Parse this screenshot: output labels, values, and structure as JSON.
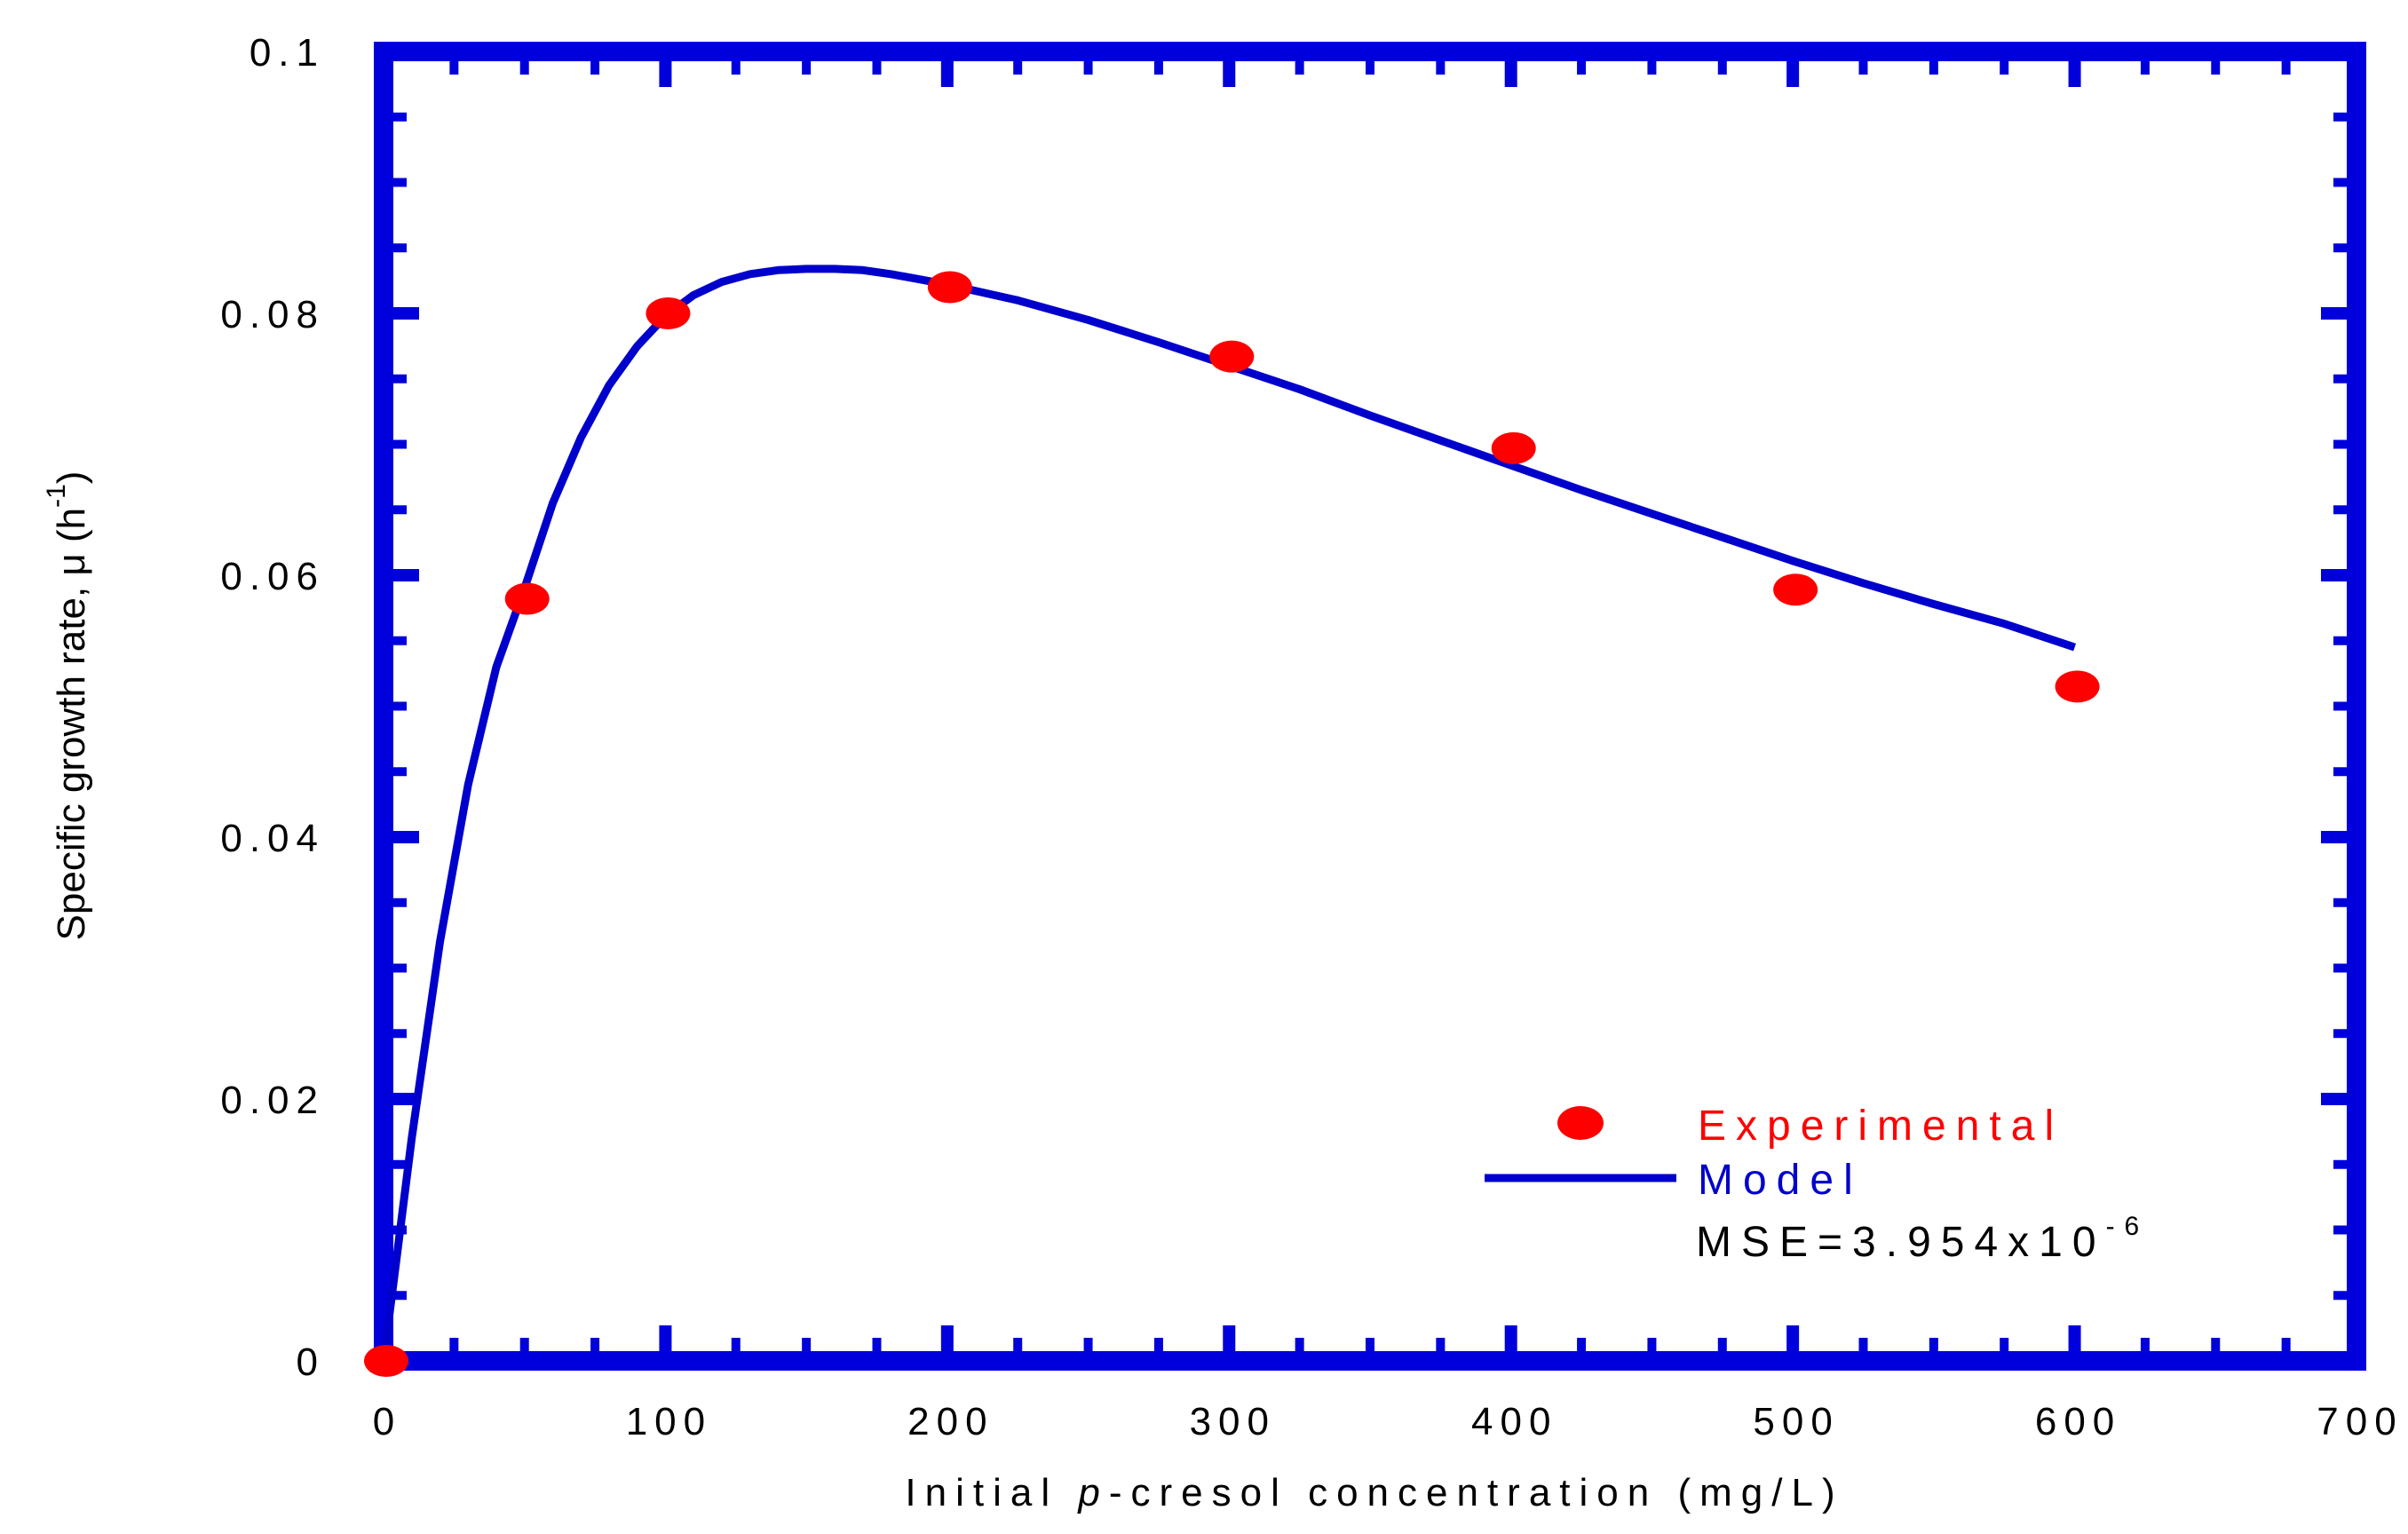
{
  "chart_data": {
    "type": "scatter",
    "title": "",
    "xlabel": {
      "prefix": "Initial ",
      "italic": "p",
      "suffix": "-cresol concentration (mg/L)"
    },
    "ylabel": {
      "main": "Specific growth rate, μ (h",
      "superscript": "-1",
      "close": ")"
    },
    "xlim": [
      0,
      700
    ],
    "ylim": [
      0,
      0.1
    ],
    "xticks": [
      0,
      100,
      200,
      300,
      400,
      500,
      600,
      700
    ],
    "yticks": [
      0,
      0.02,
      0.04,
      0.06,
      0.08,
      0.1
    ],
    "xtick_labels": [
      "0",
      "100",
      "200",
      "300",
      "400",
      "500",
      "600",
      "700"
    ],
    "ytick_labels": [
      "0",
      "0.02",
      "0.04",
      "0.06",
      "0.08",
      "0.1"
    ],
    "grid": false,
    "legend_position": "bottom-right",
    "series": [
      {
        "name": "Experimental",
        "kind": "points",
        "color": "#ff0000",
        "x": [
          0,
          50,
          100,
          200,
          300,
          400,
          500,
          600
        ],
        "y": [
          0,
          0.0582,
          0.08,
          0.082,
          0.0767,
          0.0697,
          0.0589,
          0.0515
        ]
      },
      {
        "name": "Model",
        "kind": "line",
        "color": "#0000cc",
        "x": [
          0,
          5,
          10,
          20,
          30,
          40,
          50,
          60,
          70,
          80,
          90,
          100,
          110,
          120,
          130,
          140,
          150,
          160,
          170,
          180,
          190,
          200,
          225,
          250,
          275,
          300,
          325,
          350,
          375,
          400,
          425,
          450,
          475,
          500,
          525,
          550,
          575,
          600
        ],
        "y": [
          0,
          0.0085,
          0.017,
          0.032,
          0.044,
          0.053,
          0.059,
          0.0655,
          0.0705,
          0.0745,
          0.0775,
          0.0798,
          0.0814,
          0.0824,
          0.083,
          0.0833,
          0.0834,
          0.0834,
          0.0833,
          0.083,
          0.0826,
          0.0822,
          0.081,
          0.0795,
          0.0778,
          0.076,
          0.0742,
          0.0722,
          0.0703,
          0.0684,
          0.0665,
          0.0647,
          0.0629,
          0.0611,
          0.0594,
          0.0578,
          0.0563,
          0.0545
        ]
      }
    ],
    "annotation": {
      "base": "MSE=3.954x10",
      "superscript": "-6"
    }
  },
  "colors": {
    "axis": "#0000dd",
    "model": "#0000cc",
    "experimental": "#ff0000",
    "text": "#000000"
  }
}
